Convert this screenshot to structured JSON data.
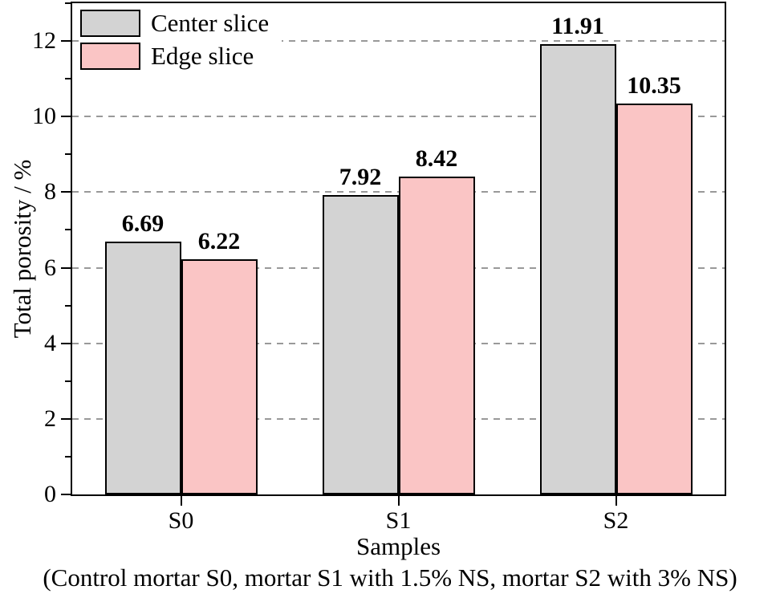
{
  "figure": {
    "caption": "(Control mortar S0, mortar S1 with 1.5% NS, mortar S2 with 3% NS)"
  },
  "chart_data": {
    "type": "bar",
    "title": "",
    "categories": [
      "S0",
      "S1",
      "S2"
    ],
    "series": [
      {
        "name": "Center slice",
        "color": "#d3d3d3",
        "values": [
          6.69,
          7.92,
          11.91
        ]
      },
      {
        "name": "Edge slice",
        "color": "#fac5c5",
        "values": [
          6.22,
          8.42,
          10.35
        ]
      }
    ],
    "xlabel": "Samples",
    "ylabel": "Total porosity / %",
    "ylim": [
      0,
      13
    ],
    "yticks_major": [
      0,
      2,
      4,
      6,
      8,
      10,
      12
    ],
    "yticks_minor": [
      1,
      3,
      5,
      7,
      9,
      11,
      13
    ],
    "grid_values": [
      2,
      4,
      6,
      8,
      10,
      12
    ],
    "grid_style": "dashed",
    "grid_color": "#999999",
    "bar_border_color": "#000000",
    "legend_position": "top-left",
    "value_label_decimals": 2
  }
}
